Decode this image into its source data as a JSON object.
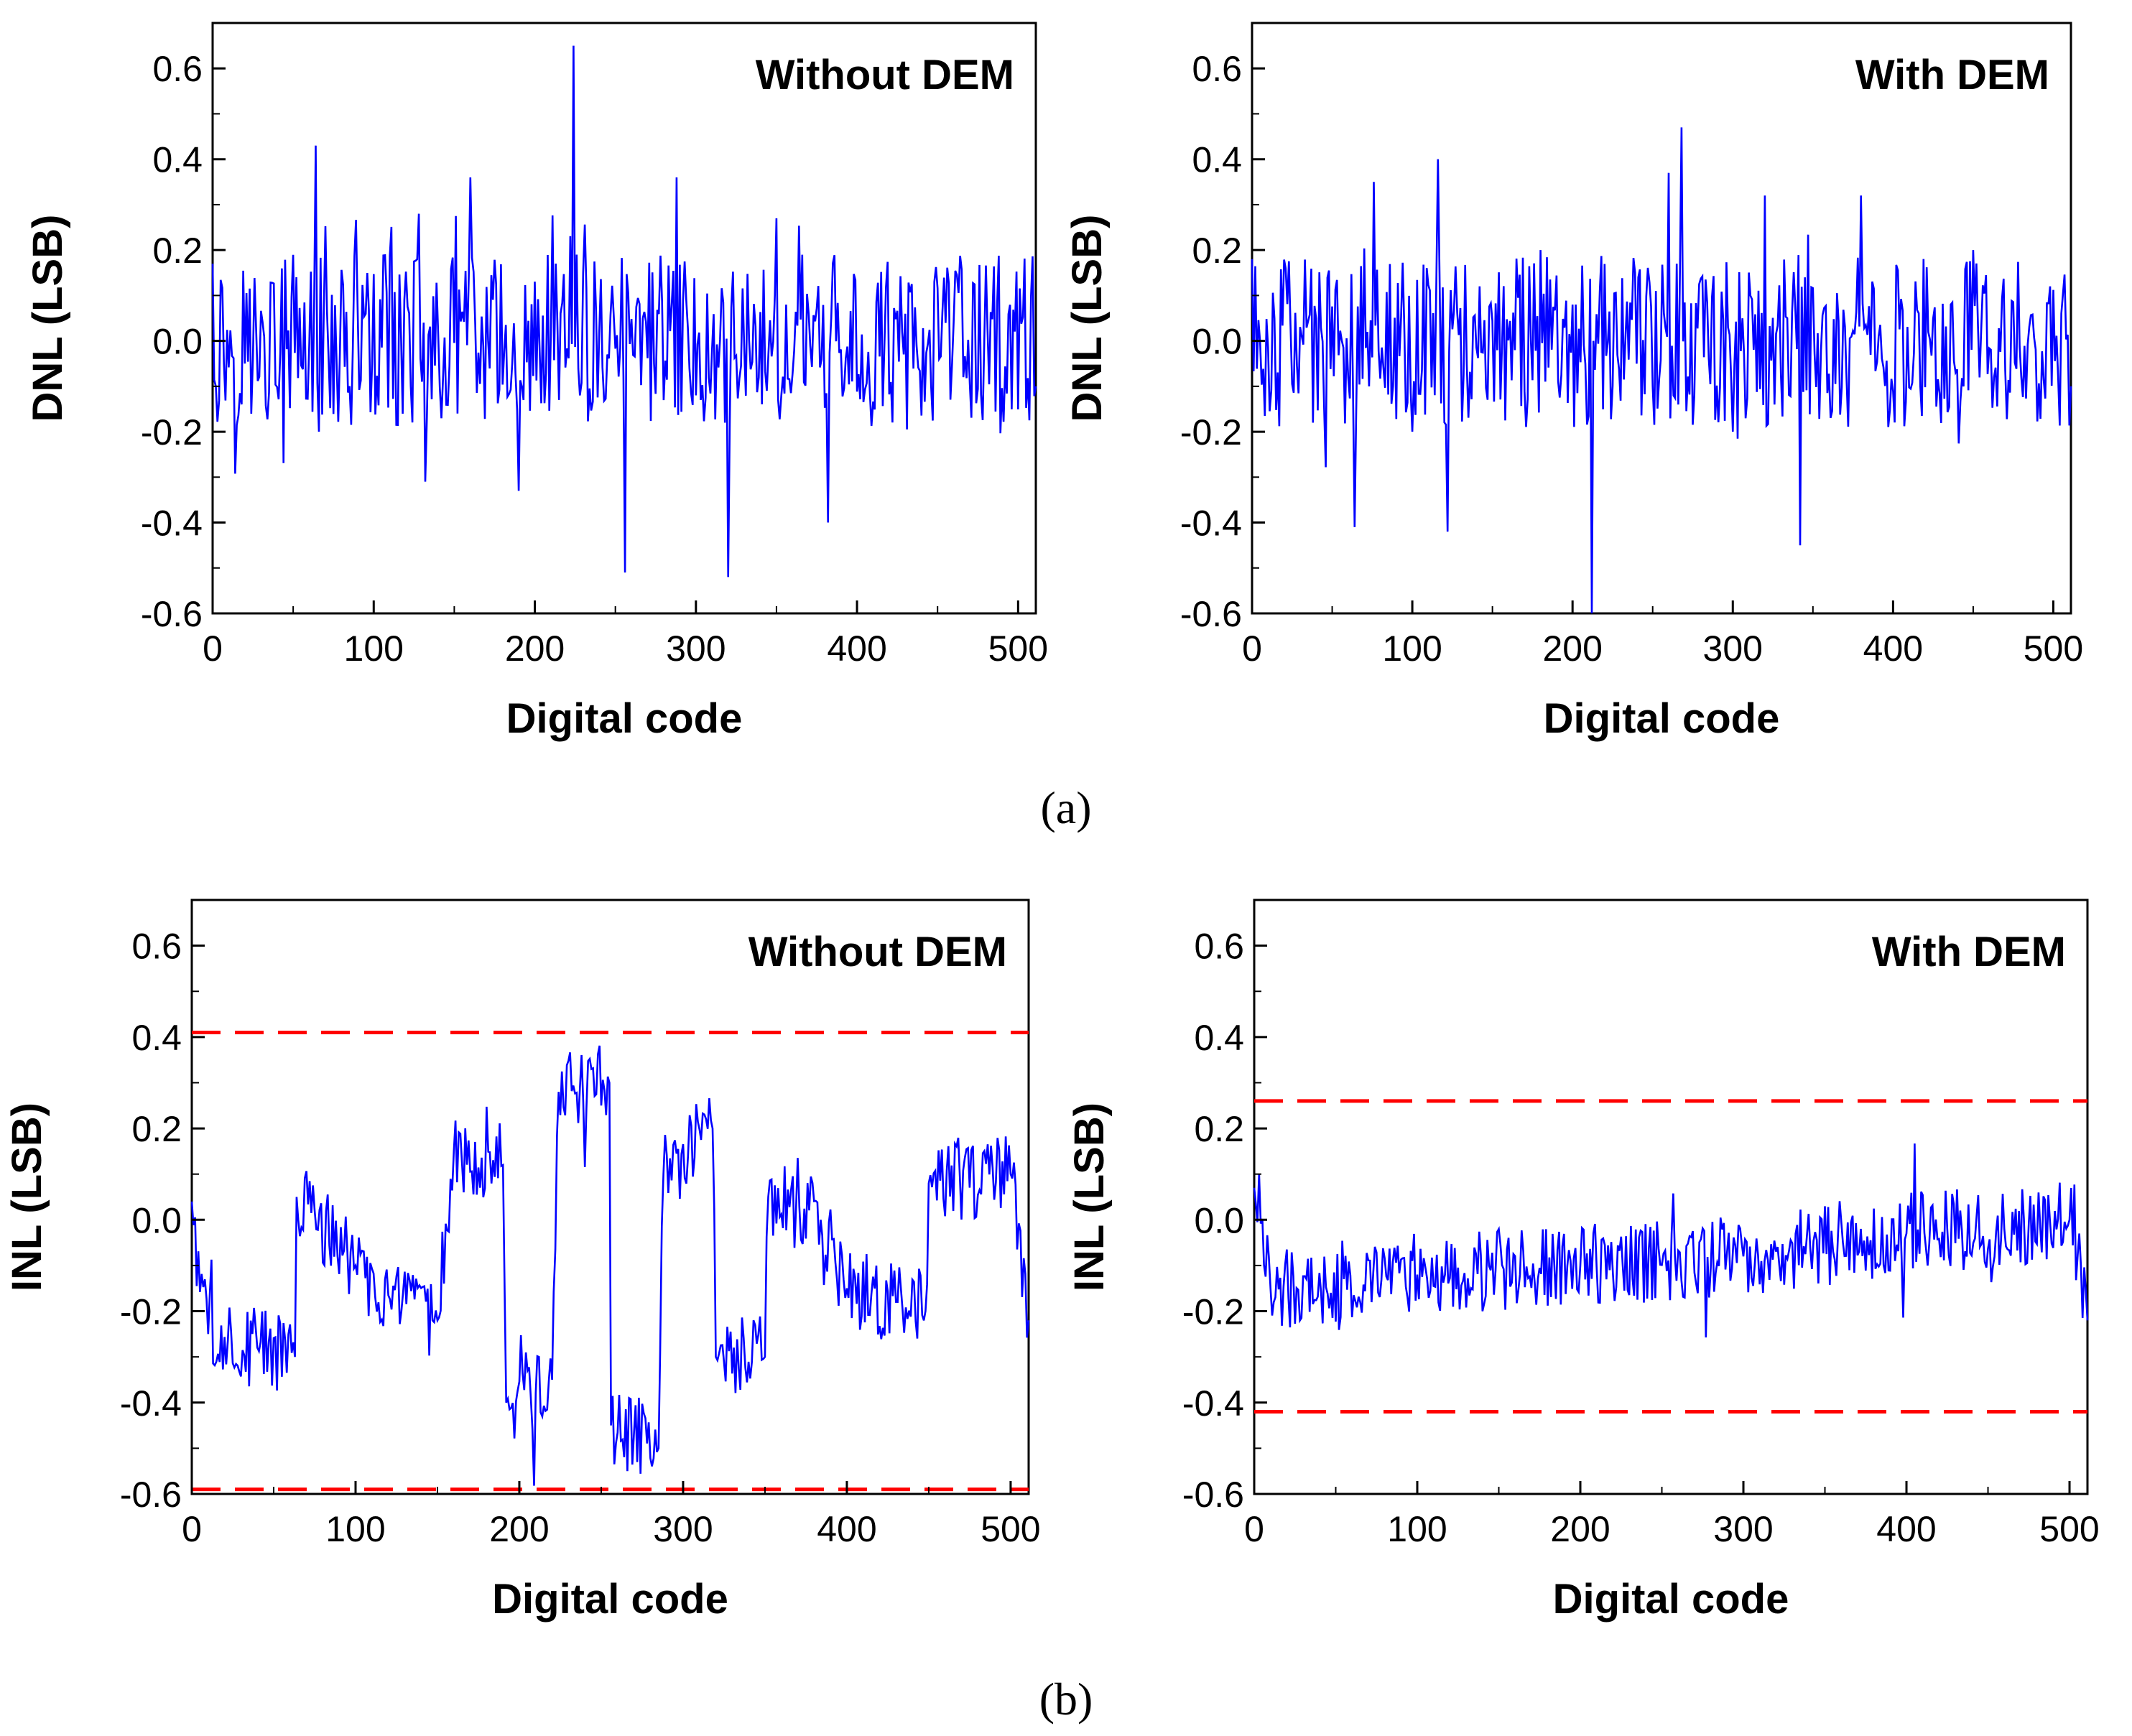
{
  "colors": {
    "series": "#0000ff",
    "limit": "#ff0000",
    "axis": "#000000"
  },
  "captions": [
    "(a)",
    "(b)"
  ],
  "chart_data": [
    {
      "type": "line",
      "title": "Without DEM",
      "xlabel": "Digital code",
      "ylabel": "DNL (LSB)",
      "xlim": [
        0,
        511
      ],
      "ylim": [
        -0.6,
        0.7
      ],
      "xticks": [
        "0",
        "100",
        "200",
        "300",
        "400",
        "500"
      ],
      "yticks": [
        "-0.6",
        "-0.4",
        "-0.2",
        "0.0",
        "0.2",
        "0.4",
        "0.6"
      ],
      "ranges": [
        [
          0,
          0.17
        ],
        [
          20,
          -0.05
        ],
        [
          64,
          0.43
        ],
        [
          66,
          -0.2
        ],
        [
          128,
          0.28
        ],
        [
          132,
          -0.31
        ],
        [
          160,
          0.36
        ],
        [
          190,
          -0.33
        ],
        [
          224,
          0.65
        ],
        [
          228,
          -0.12
        ],
        [
          256,
          -0.51
        ],
        [
          288,
          0.36
        ],
        [
          300,
          -0.12
        ],
        [
          320,
          -0.52
        ],
        [
          350,
          0.27
        ],
        [
          382,
          -0.4
        ],
        [
          448,
          0.13
        ],
        [
          511,
          -0.1
        ]
      ],
      "limits": []
    },
    {
      "type": "line",
      "title": "With DEM",
      "xlabel": "Digital code",
      "ylabel": "DNL (LSB)",
      "xlim": [
        0,
        511
      ],
      "ylim": [
        -0.6,
        0.7
      ],
      "xticks": [
        "0",
        "100",
        "200",
        "300",
        "400",
        "500"
      ],
      "yticks": [
        "-0.6",
        "-0.4",
        "-0.2",
        "0.0",
        "0.2",
        "0.4",
        "0.6"
      ],
      "ranges": [
        [
          0,
          0.18
        ],
        [
          64,
          -0.41
        ],
        [
          76,
          0.35
        ],
        [
          100,
          -0.2
        ],
        [
          116,
          0.4
        ],
        [
          122,
          -0.42
        ],
        [
          180,
          0.2
        ],
        [
          212,
          -0.6
        ],
        [
          260,
          0.37
        ],
        [
          268,
          0.47
        ],
        [
          300,
          -0.2
        ],
        [
          320,
          0.32
        ],
        [
          342,
          -0.45
        ],
        [
          380,
          0.32
        ],
        [
          450,
          0.2
        ],
        [
          511,
          -0.1
        ]
      ],
      "limits": []
    },
    {
      "type": "line",
      "title": "Without DEM",
      "xlabel": "Digital code",
      "ylabel": "INL (LSB)",
      "xlim": [
        0,
        511
      ],
      "ylim": [
        -0.6,
        0.7
      ],
      "xticks": [
        "0",
        "100",
        "200",
        "300",
        "400",
        "500"
      ],
      "yticks": [
        "-0.6",
        "-0.4",
        "-0.2",
        "0.0",
        "0.2",
        "0.4",
        "0.6"
      ],
      "ranges": [
        [
          0,
          0.04
        ],
        [
          10,
          -0.25
        ],
        [
          40,
          -0.28
        ],
        [
          63,
          -0.3
        ],
        [
          64,
          0.05
        ],
        [
          100,
          -0.1
        ],
        [
          128,
          -0.2
        ],
        [
          150,
          -0.22
        ],
        [
          160,
          0.15
        ],
        [
          190,
          0.12
        ],
        [
          192,
          -0.4
        ],
        [
          220,
          -0.35
        ],
        [
          224,
          0.28
        ],
        [
          255,
          0.3
        ],
        [
          256,
          -0.45
        ],
        [
          285,
          -0.5
        ],
        [
          288,
          0.1
        ],
        [
          318,
          0.2
        ],
        [
          320,
          -0.3
        ],
        [
          350,
          -0.3
        ],
        [
          352,
          0.05
        ],
        [
          384,
          0.0
        ],
        [
          400,
          -0.15
        ],
        [
          448,
          -0.2
        ],
        [
          450,
          0.08
        ],
        [
          500,
          0.1
        ],
        [
          511,
          -0.22
        ]
      ],
      "limits": [
        0.41,
        -0.59
      ]
    },
    {
      "type": "line",
      "title": "With DEM",
      "xlabel": "Digital code",
      "ylabel": "INL (LSB)",
      "xlim": [
        0,
        511
      ],
      "ylim": [
        -0.6,
        0.7
      ],
      "xticks": [
        "0",
        "100",
        "200",
        "300",
        "400",
        "500"
      ],
      "yticks": [
        "-0.6",
        "-0.4",
        "-0.2",
        "0.0",
        "0.2",
        "0.4",
        "0.6"
      ],
      "ranges": [
        [
          0,
          0.07
        ],
        [
          10,
          -0.15
        ],
        [
          100,
          -0.12
        ],
        [
          200,
          -0.1
        ],
        [
          300,
          -0.08
        ],
        [
          400,
          -0.03
        ],
        [
          500,
          0.0
        ],
        [
          511,
          -0.22
        ]
      ],
      "limits": [
        0.26,
        -0.42
      ]
    }
  ]
}
